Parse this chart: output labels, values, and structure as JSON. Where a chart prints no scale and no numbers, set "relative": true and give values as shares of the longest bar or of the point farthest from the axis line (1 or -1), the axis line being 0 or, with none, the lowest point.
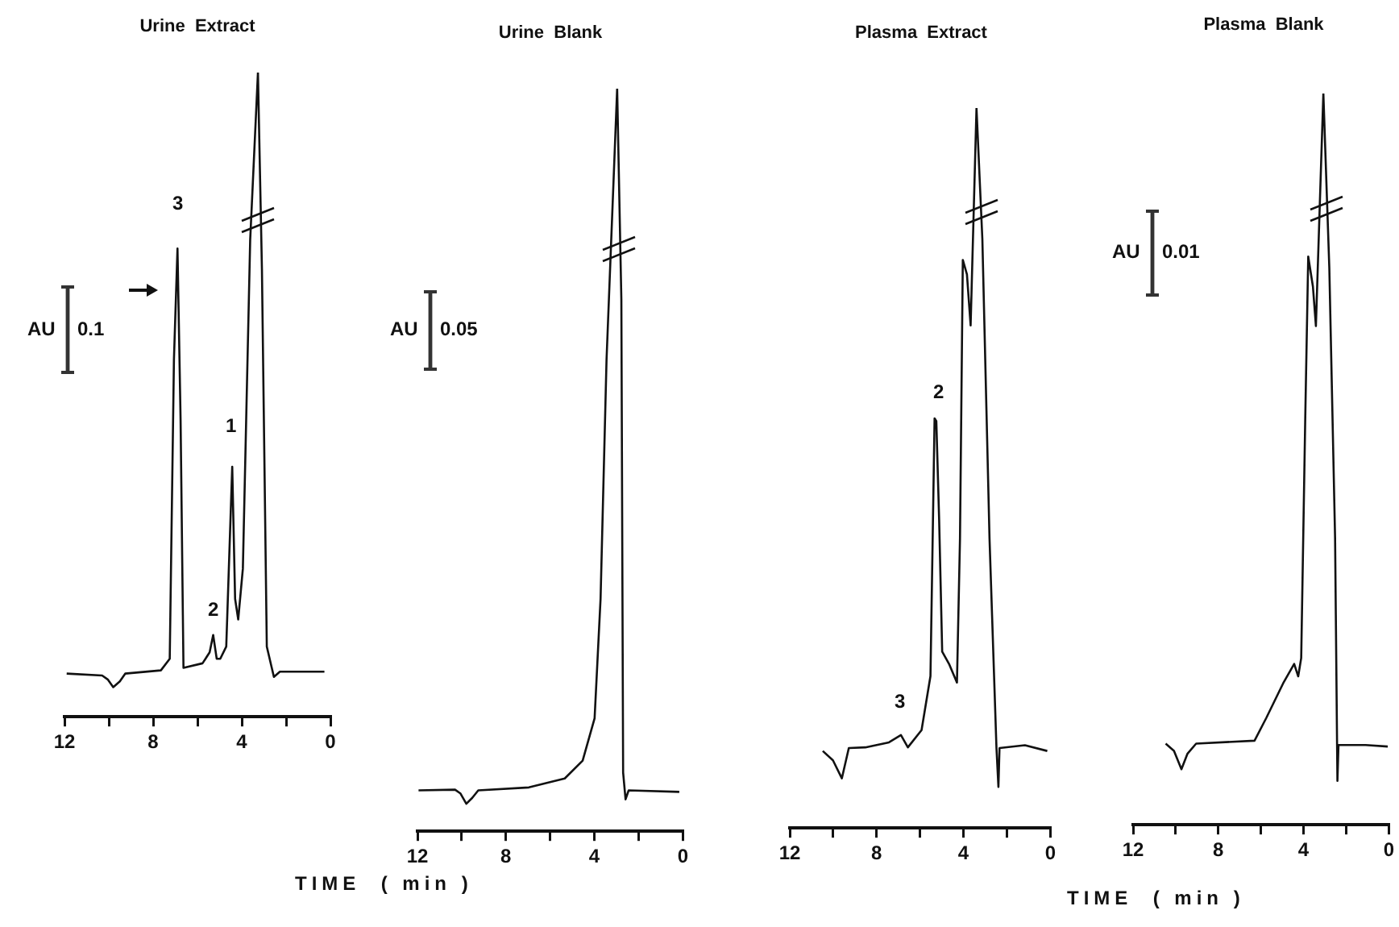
{
  "chart_data": [
    {
      "type": "line",
      "title": "Urine  Extract",
      "xlabel": "TIME  ( min )",
      "relative": true,
      "color": "#111111",
      "marker": "none",
      "grid": false,
      "xlim": [
        12,
        0
      ],
      "xticks": [
        12,
        {
          "value": 10,
          "label": null
        },
        8,
        {
          "value": 6,
          "label": null
        },
        4,
        {
          "value": 2,
          "label": null
        },
        0
      ],
      "x": [
        11.9,
        10.3,
        10.05,
        9.8,
        9.5,
        9.26,
        7.65,
        7.25,
        7.06,
        6.9,
        6.76,
        6.63,
        5.77,
        5.45,
        5.29,
        5.13,
        4.97,
        4.7,
        4.43,
        4.3,
        4.16,
        3.95,
        3.62,
        3.27,
        3.09,
        2.87,
        2.68,
        2.55,
        2.28,
        0.27
      ],
      "values": [
        0.067,
        0.064,
        0.058,
        0.046,
        0.055,
        0.067,
        0.072,
        0.09,
        0.555,
        0.727,
        0.46,
        0.076,
        0.083,
        0.1,
        0.127,
        0.09,
        0.09,
        0.109,
        0.388,
        0.183,
        0.151,
        0.23,
        0.74,
        1.0,
        0.695,
        0.109,
        0.081,
        0.062,
        0.07,
        0.07
      ],
      "annotations": [
        "3",
        "2",
        "1",
        "AU",
        "0.1"
      ]
    },
    {
      "type": "line",
      "title": "Urine  Blank",
      "relative": true,
      "color": "#111111",
      "marker": "none",
      "grid": false,
      "xlim": [
        12,
        0
      ],
      "xticks": [
        12,
        {
          "value": 10,
          "label": null
        },
        8,
        {
          "value": 6,
          "label": null
        },
        4,
        {
          "value": 2,
          "label": null
        },
        0
      ],
      "x": [
        11.95,
        10.3,
        10.06,
        9.79,
        9.52,
        9.25,
        6.96,
        5.34,
        4.53,
        3.99,
        3.72,
        3.45,
        2.97,
        2.78,
        2.7,
        2.59,
        2.45,
        0.16
      ],
      "values": [
        0.055,
        0.056,
        0.051,
        0.037,
        0.045,
        0.055,
        0.059,
        0.071,
        0.095,
        0.152,
        0.313,
        0.635,
        1.0,
        0.716,
        0.079,
        0.043,
        0.055,
        0.053
      ],
      "annotations": [
        "AU",
        "0.05"
      ]
    },
    {
      "type": "line",
      "title": "Plasma  Extract",
      "xlabel": "TIME  ( min )",
      "relative": true,
      "color": "#111111",
      "marker": "none",
      "grid": false,
      "xlim": [
        12,
        0
      ],
      "xticks": [
        12,
        {
          "value": 10,
          "label": null
        },
        8,
        {
          "value": 6,
          "label": null
        },
        4,
        {
          "value": 2,
          "label": null
        },
        0
      ],
      "x": [
        10.48,
        10.01,
        9.6,
        9.28,
        8.52,
        7.43,
        6.88,
        6.56,
        5.93,
        5.52,
        5.33,
        5.25,
        5.12,
        4.98,
        4.65,
        4.3,
        4.16,
        4.03,
        3.84,
        3.67,
        3.4,
        3.13,
        2.8,
        2.48,
        2.39,
        2.34,
        1.17,
        0.14
      ],
      "values": [
        0.107,
        0.094,
        0.069,
        0.111,
        0.112,
        0.119,
        0.129,
        0.112,
        0.136,
        0.211,
        0.569,
        0.565,
        0.428,
        0.245,
        0.227,
        0.202,
        0.402,
        0.789,
        0.769,
        0.698,
        1.0,
        0.818,
        0.402,
        0.111,
        0.057,
        0.111,
        0.115,
        0.107
      ],
      "annotations": [
        "2",
        "3"
      ]
    },
    {
      "type": "line",
      "title": "Plasma  Blank",
      "relative": true,
      "color": "#111111",
      "marker": "none",
      "grid": false,
      "xlim": [
        12,
        0
      ],
      "xticks": [
        12,
        {
          "value": 10,
          "label": null
        },
        8,
        {
          "value": 6,
          "label": null
        },
        4,
        {
          "value": 2,
          "label": null
        },
        0
      ],
      "x": [
        10.47,
        10.08,
        9.73,
        9.45,
        9.04,
        6.3,
        5.75,
        4.93,
        4.44,
        4.25,
        4.11,
        3.92,
        3.78,
        3.56,
        3.42,
        3.07,
        2.79,
        2.52,
        2.41,
        2.36,
        1.09,
        0.05
      ],
      "values": [
        0.111,
        0.101,
        0.076,
        0.097,
        0.111,
        0.115,
        0.146,
        0.195,
        0.22,
        0.203,
        0.228,
        0.556,
        0.777,
        0.736,
        0.682,
        1.0,
        0.761,
        0.392,
        0.06,
        0.109,
        0.109,
        0.107
      ],
      "annotations": [
        "AU",
        "0.01"
      ]
    }
  ]
}
